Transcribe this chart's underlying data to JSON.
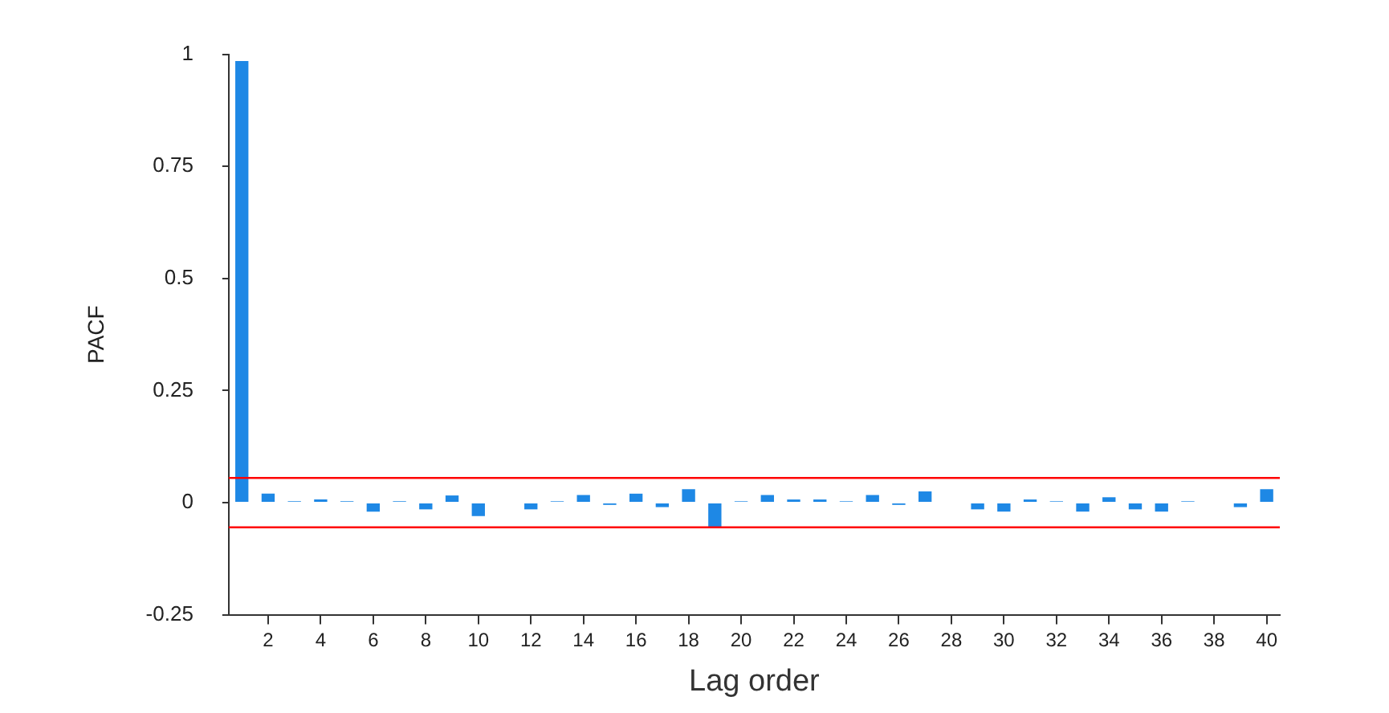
{
  "chart_data": {
    "type": "bar",
    "xlabel": "Lag order",
    "ylabel": "PACF",
    "x": [
      1,
      2,
      3,
      4,
      5,
      6,
      7,
      8,
      9,
      10,
      11,
      12,
      13,
      14,
      15,
      16,
      17,
      18,
      19,
      20,
      21,
      22,
      23,
      24,
      25,
      26,
      27,
      28,
      29,
      30,
      31,
      32,
      33,
      34,
      35,
      36,
      37,
      38,
      39,
      40
    ],
    "values": [
      0.985,
      0.02,
      0.003,
      0.007,
      0.003,
      -0.02,
      0.003,
      -0.015,
      0.016,
      -0.03,
      0,
      -0.015,
      0.003,
      0.017,
      -0.005,
      0.02,
      -0.01,
      0.03,
      -0.055,
      0.003,
      0.017,
      0.007,
      0.007,
      0.003,
      0.017,
      -0.005,
      0.025,
      0,
      -0.015,
      -0.02,
      0.007,
      0.003,
      -0.02,
      0.012,
      -0.015,
      -0.02,
      0.003,
      0,
      -0.01,
      0.03
    ],
    "color": "#1e88e5",
    "xlim": [
      0.5,
      40.5
    ],
    "xticks": [
      2,
      4,
      6,
      8,
      10,
      12,
      14,
      16,
      18,
      20,
      22,
      24,
      26,
      28,
      30,
      32,
      34,
      36,
      38,
      40
    ],
    "ylim": [
      -0.25,
      1
    ],
    "yticks": [
      -0.25,
      0,
      0.25,
      0.5,
      0.75,
      1
    ],
    "grid": false,
    "legend": false,
    "ref_lines": [
      {
        "axis": "y",
        "value": 0.055,
        "color": "#ff0000"
      },
      {
        "axis": "y",
        "value": -0.055,
        "color": "#ff0000"
      }
    ]
  }
}
